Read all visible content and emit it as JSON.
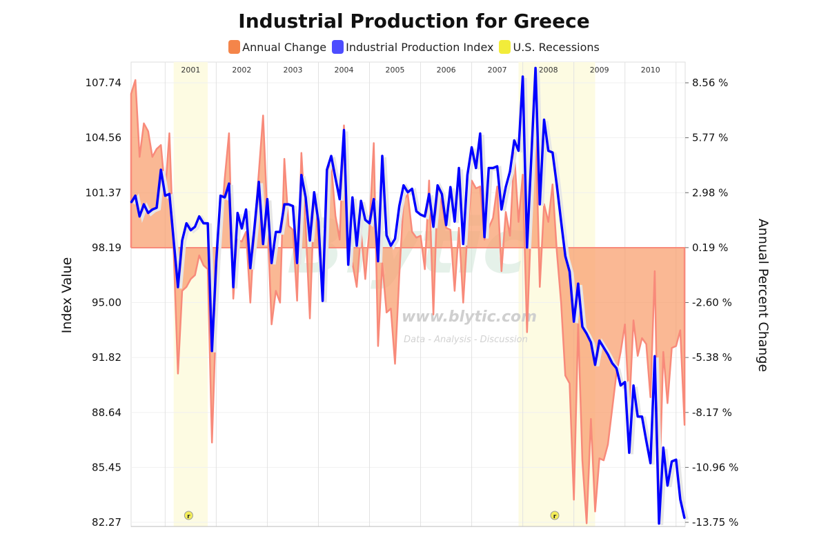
{
  "chart_data": {
    "type": "line",
    "title": "Industrial Production for Greece",
    "ylabel_left": "Index Value",
    "ylabel_right": "Annual Percent Change",
    "left_ticks": [
      "82.27",
      "85.45",
      "88.64",
      "91.82",
      "95.00",
      "98.19",
      "101.37",
      "104.56",
      "107.74"
    ],
    "right_ticks": [
      "-13.75 %",
      "-10.96 %",
      "-8.17 %",
      "-5.38 %",
      "-2.60 %",
      "0.19 %",
      "2.98 %",
      "5.77 %",
      "8.56 %"
    ],
    "ylim_left": [
      82.27,
      107.74
    ],
    "ylim_right": [
      -13.75,
      8.56
    ],
    "year_labels": [
      "2001",
      "2002",
      "2003",
      "2004",
      "2005",
      "2006",
      "2007",
      "2008",
      "2009",
      "2010"
    ],
    "grid": true,
    "legend_placement": "top",
    "legend": [
      {
        "name": "Annual Change",
        "color": "#f4854a"
      },
      {
        "name": "Industrial Production Index",
        "color": "#4d4dff"
      },
      {
        "name": "U.S. Recessions",
        "color": "#f2ec3a"
      }
    ],
    "recessions": [
      {
        "start": "2001-03",
        "end": "2001-11",
        "marker": "r"
      },
      {
        "start": "2007-12",
        "end": "2009-06",
        "marker": "r"
      }
    ],
    "x": [
      "2000-05",
      "2000-06",
      "2000-07",
      "2000-08",
      "2000-09",
      "2000-10",
      "2000-11",
      "2000-12",
      "2001-01",
      "2001-02",
      "2001-03",
      "2001-04",
      "2001-05",
      "2001-06",
      "2001-07",
      "2001-08",
      "2001-09",
      "2001-10",
      "2001-11",
      "2001-12",
      "2002-01",
      "2002-02",
      "2002-03",
      "2002-04",
      "2002-05",
      "2002-06",
      "2002-07",
      "2002-08",
      "2002-09",
      "2002-10",
      "2002-11",
      "2002-12",
      "2003-01",
      "2003-02",
      "2003-03",
      "2003-04",
      "2003-05",
      "2003-06",
      "2003-07",
      "2003-08",
      "2003-09",
      "2003-10",
      "2003-11",
      "2003-12",
      "2004-01",
      "2004-02",
      "2004-03",
      "2004-04",
      "2004-05",
      "2004-06",
      "2004-07",
      "2004-08",
      "2004-09",
      "2004-10",
      "2004-11",
      "2004-12",
      "2005-01",
      "2005-02",
      "2005-03",
      "2005-04",
      "2005-05",
      "2005-06",
      "2005-07",
      "2005-08",
      "2005-09",
      "2005-10",
      "2005-11",
      "2005-12",
      "2006-01",
      "2006-02",
      "2006-03",
      "2006-04",
      "2006-05",
      "2006-06",
      "2006-07",
      "2006-08",
      "2006-09",
      "2006-10",
      "2006-11",
      "2006-12",
      "2007-01",
      "2007-02",
      "2007-03",
      "2007-04",
      "2007-05",
      "2007-06",
      "2007-07",
      "2007-08",
      "2007-09",
      "2007-10",
      "2007-11",
      "2007-12",
      "2008-01",
      "2008-02",
      "2008-03",
      "2008-04",
      "2008-05",
      "2008-06",
      "2008-07",
      "2008-08",
      "2008-09",
      "2008-10",
      "2008-11",
      "2008-12",
      "2009-01",
      "2009-02",
      "2009-03",
      "2009-04",
      "2009-05",
      "2009-06",
      "2009-07",
      "2009-08",
      "2009-09",
      "2009-10",
      "2009-11",
      "2009-12",
      "2010-01",
      "2010-02",
      "2010-03",
      "2010-04",
      "2010-05",
      "2010-06",
      "2010-07",
      "2010-08",
      "2010-09",
      "2010-10",
      "2010-11",
      "2010-12",
      "2011-01",
      "2011-02",
      "2011-03"
    ],
    "series": [
      {
        "name": "Industrial Production Index",
        "axis": "left",
        "color": "#0000ff",
        "values": [
          100.8,
          101.2,
          100.0,
          100.7,
          100.2,
          100.4,
          100.5,
          102.7,
          101.2,
          101.3,
          98.6,
          95.9,
          98.6,
          99.6,
          99.2,
          99.4,
          100.0,
          99.6,
          99.6,
          92.2,
          97.4,
          101.2,
          101.1,
          101.9,
          95.9,
          100.2,
          99.3,
          100.4,
          97.0,
          99.4,
          102.0,
          98.4,
          101.0,
          97.3,
          99.1,
          99.1,
          100.7,
          100.7,
          100.6,
          97.3,
          102.4,
          101.1,
          98.6,
          101.4,
          99.7,
          95.1,
          102.7,
          103.5,
          102.2,
          101.0,
          105.0,
          97.2,
          101.1,
          98.3,
          100.9,
          99.8,
          99.6,
          101.0,
          97.4,
          103.5,
          98.9,
          98.3,
          98.7,
          100.6,
          101.8,
          101.4,
          101.6,
          100.3,
          100.1,
          100.0,
          101.3,
          99.4,
          101.8,
          101.3,
          99.5,
          101.7,
          99.7,
          102.8,
          98.4,
          102.4,
          104.0,
          102.8,
          104.8,
          98.8,
          102.8,
          102.8,
          102.9,
          100.4,
          101.7,
          102.6,
          104.4,
          103.8,
          108.1,
          98.2,
          103.4,
          108.6,
          100.7,
          105.6,
          103.8,
          103.7,
          101.8,
          99.7,
          97.7,
          96.8,
          93.9,
          96.1,
          93.6,
          93.2,
          92.7,
          91.4,
          92.8,
          92.4,
          92.0,
          91.5,
          91.2,
          90.2,
          90.4,
          86.3,
          90.2,
          88.4,
          88.4,
          87.0,
          85.7,
          91.9,
          82.2,
          86.6,
          84.4,
          85.8,
          85.9,
          83.6,
          82.5
        ]
      },
      {
        "name": "Annual Change",
        "axis": "right",
        "color": "#f88a7a",
        "values": [
          8.0,
          8.7,
          4.8,
          6.5,
          6.1,
          4.8,
          5.2,
          5.4,
          3.0,
          6.0,
          0.0,
          -6.2,
          -2.0,
          -1.8,
          -1.4,
          -1.2,
          -0.2,
          -0.7,
          -0.9,
          -9.7,
          -3.1,
          0.9,
          3.7,
          6.0,
          -2.4,
          0.6,
          0.5,
          1.0,
          -2.6,
          1.2,
          4.0,
          6.9,
          1.8,
          -3.7,
          -2.0,
          -2.6,
          4.7,
          1.3,
          1.1,
          -2.5,
          5.0,
          1.3,
          -3.4,
          2.7,
          0.6,
          -2.0,
          4.2,
          4.4,
          1.8,
          0.6,
          6.4,
          -0.3,
          -0.6,
          -1.8,
          1.0,
          -1.4,
          1.2,
          5.5,
          -4.8,
          -0.6,
          -3.1,
          -2.9,
          -5.7,
          -1.2,
          2.6,
          2.9,
          1.0,
          0.7,
          0.8,
          -0.9,
          3.6,
          -3.2,
          3.2,
          2.4,
          1.2,
          1.1,
          -2.0,
          1.2,
          -2.6,
          0.9,
          3.6,
          3.2,
          3.3,
          0.6,
          1.2,
          1.7,
          3.3,
          -1.0,
          2.0,
          0.8,
          5.0,
          1.5,
          3.9,
          -4.1,
          1.8,
          6.6,
          -1.8,
          2.4,
          1.5,
          3.4,
          0.0,
          -2.6,
          -6.3,
          -6.7,
          -12.6,
          -3.7,
          -10.6,
          -13.8,
          -8.5,
          -13.2,
          -10.5,
          -10.6,
          -9.8,
          -8.0,
          -6.2,
          -5.1,
          -3.7,
          -8.0,
          -3.5,
          -5.3,
          -4.4,
          -4.7,
          -7.4,
          -1.0,
          -12.6,
          -5.1,
          -7.7,
          -4.9,
          -4.8,
          -4.0,
          -8.8
        ]
      }
    ],
    "watermark": {
      "logo": "Blytic",
      "url": "www.blytic.com",
      "tagline": "Data - Analysis - Discussion"
    }
  }
}
